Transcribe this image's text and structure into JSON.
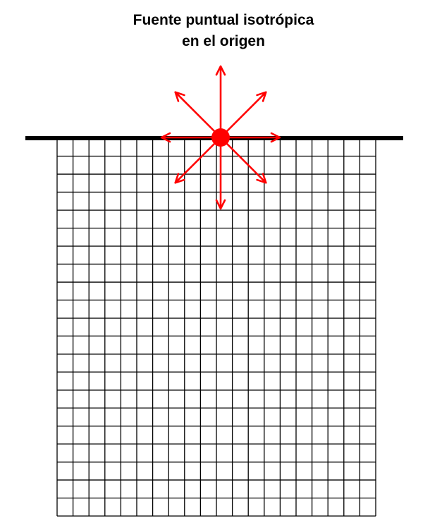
{
  "title": {
    "line1": "Fuente puntual isotrópica",
    "line2": "en el origen"
  },
  "colors": {
    "surface_line": "#000000",
    "grid": "#000000",
    "source": "#ff0000",
    "arrows": "#ff0000",
    "background": "#ffffff"
  },
  "icons": {
    "source": "red-dot-icon",
    "rays": "arrow-icon"
  },
  "grid": {
    "columns": 20,
    "rows": 21
  },
  "rays": {
    "count": 8,
    "directions_deg": [
      0,
      45,
      90,
      135,
      180,
      225,
      270,
      315
    ]
  }
}
